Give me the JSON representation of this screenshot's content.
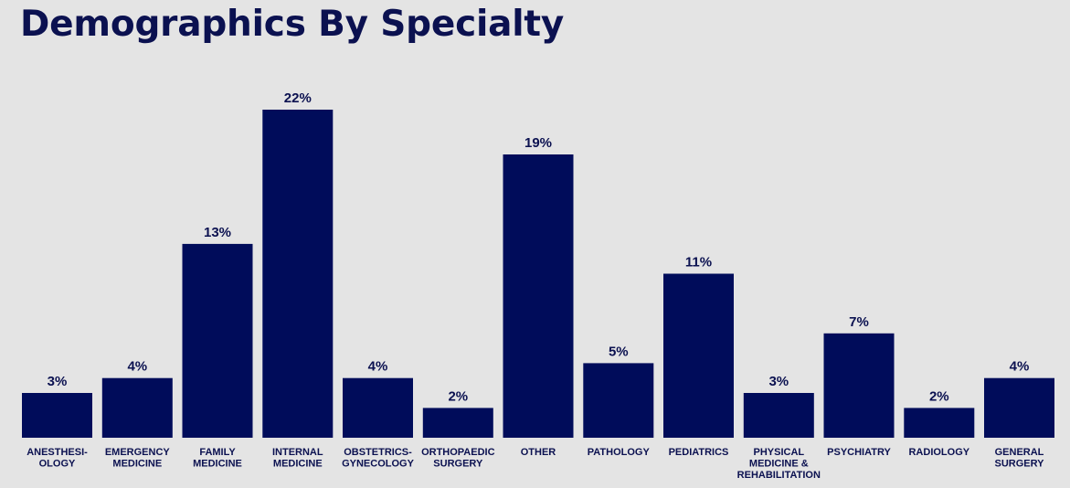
{
  "title": "Demographics By Specialty",
  "colors": {
    "background": "#e4e4e4",
    "bar": "#000c5a",
    "text": "#0b1150"
  },
  "chart_data": {
    "type": "bar",
    "title": "Demographics By Specialty",
    "xlabel": "",
    "ylabel": "",
    "ylim": [
      0,
      22
    ],
    "grid": false,
    "legend": "none",
    "value_suffix": "%",
    "categories": [
      [
        "ANESTHESI-",
        "OLOGY"
      ],
      [
        "EMERGENCY",
        "MEDICINE"
      ],
      [
        "FAMILY",
        "MEDICINE"
      ],
      [
        "INTERNAL",
        "MEDICINE"
      ],
      [
        "OBSTETRICS-",
        "GYNECOLOGY"
      ],
      [
        "ORTHOPAEDIC",
        "SURGERY"
      ],
      [
        "OTHER"
      ],
      [
        "PATHOLOGY"
      ],
      [
        "PEDIATRICS"
      ],
      [
        "PHYSICAL",
        "MEDICINE &",
        "REHABILITATION"
      ],
      [
        "PSYCHIATRY"
      ],
      [
        "RADIOLOGY"
      ],
      [
        "GENERAL",
        "SURGERY"
      ]
    ],
    "values": [
      3,
      4,
      13,
      22,
      4,
      2,
      19,
      5,
      11,
      3,
      7,
      2,
      4
    ],
    "labels": [
      "3%",
      "4%",
      "13%",
      "22%",
      "4%",
      "2%",
      "19%",
      "5%",
      "11%",
      "3%",
      "7%",
      "2%",
      "4%"
    ]
  }
}
